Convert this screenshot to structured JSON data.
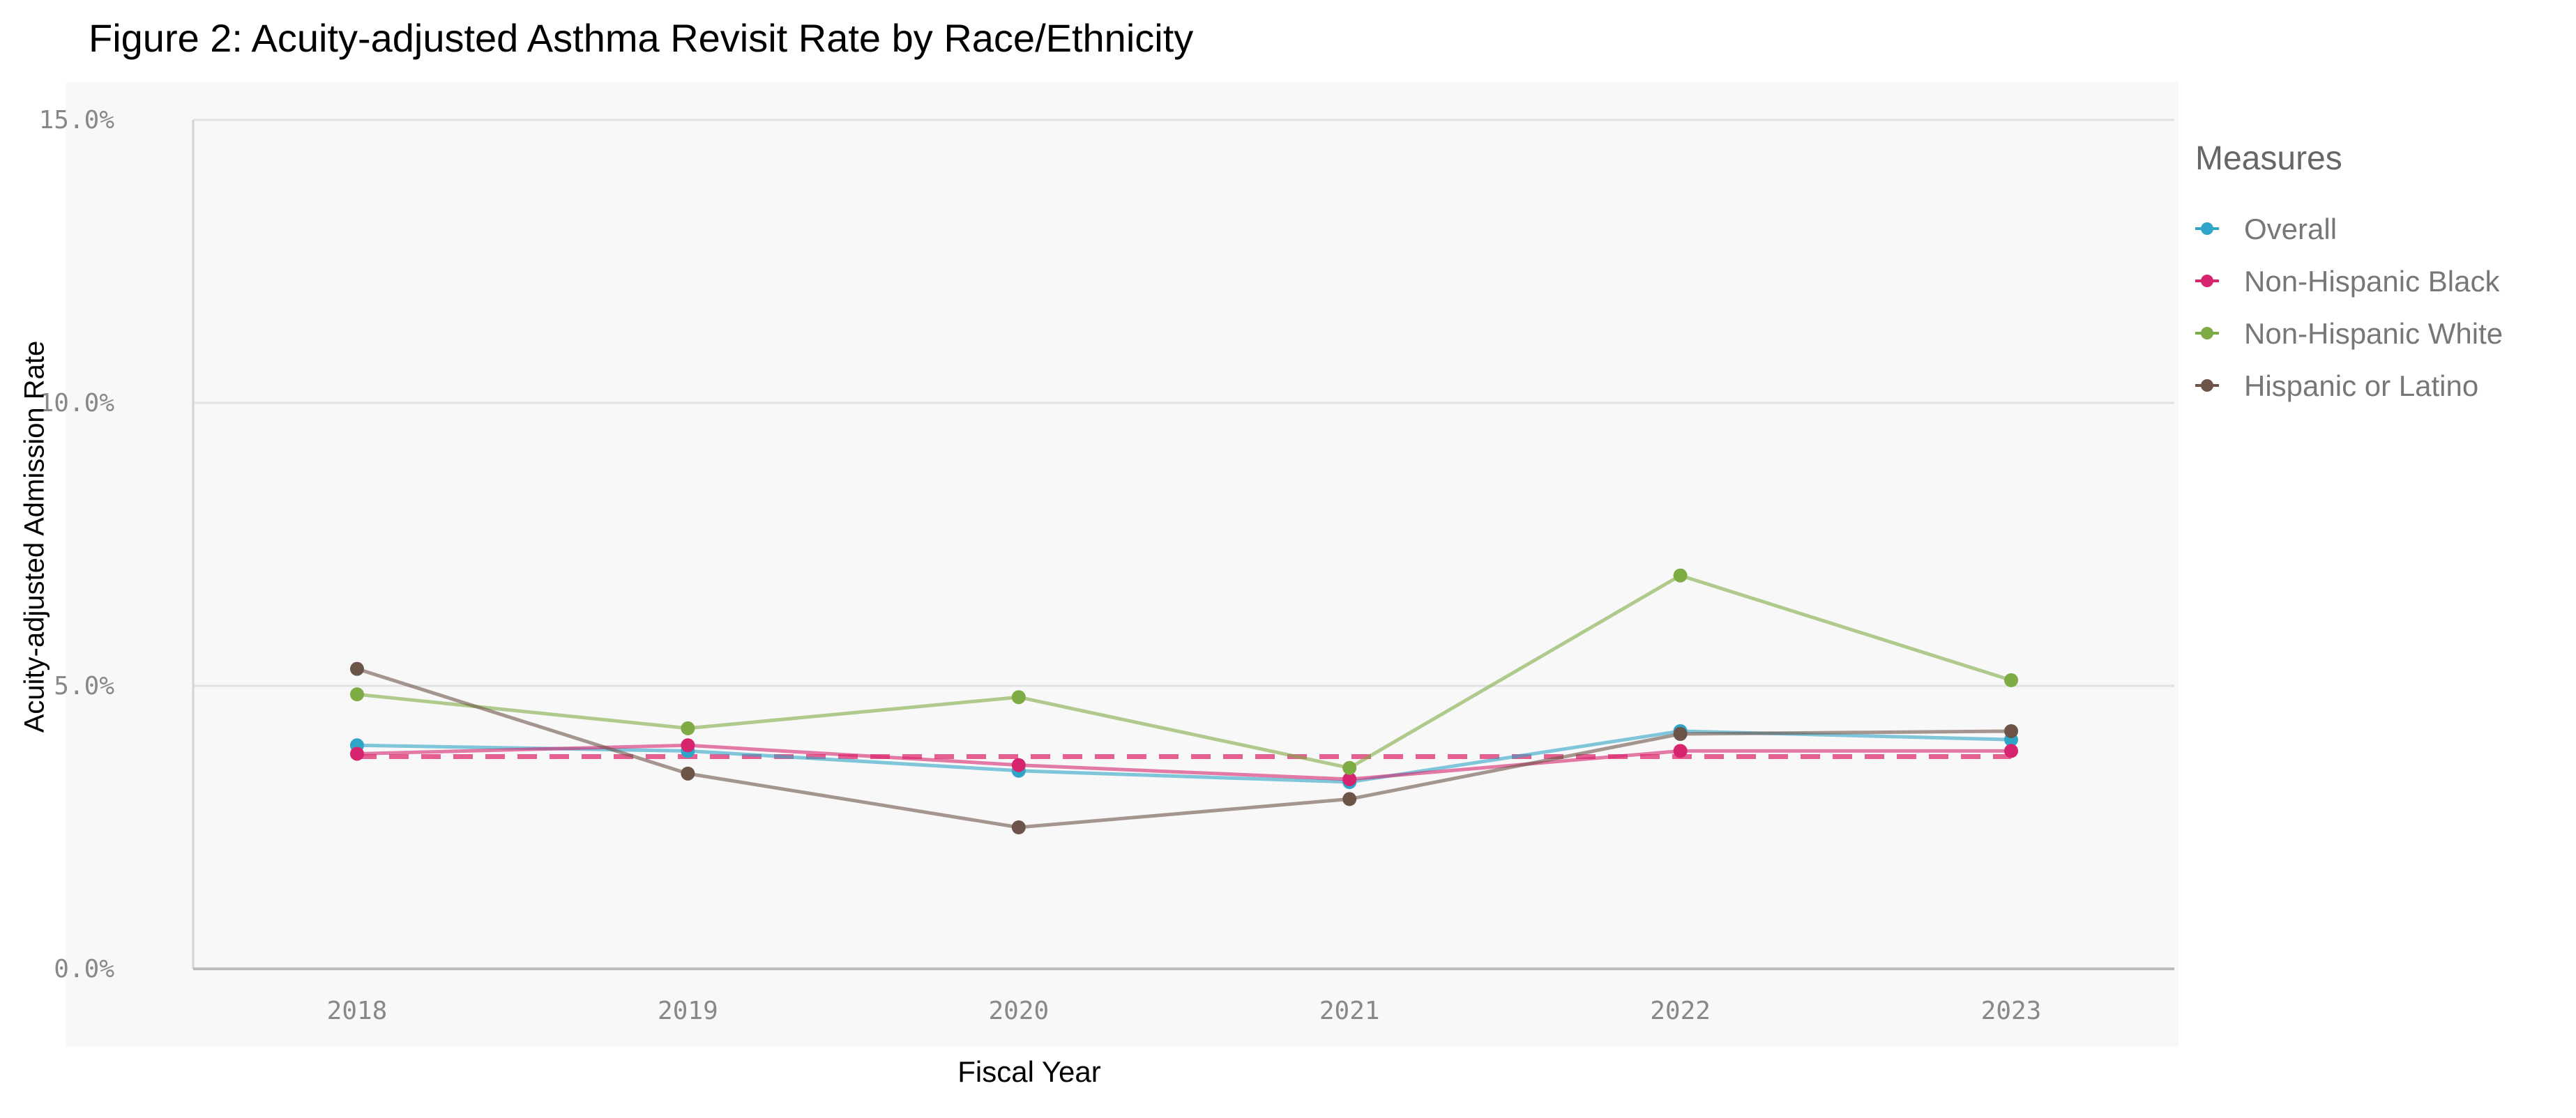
{
  "figure_title": "Figure 2: Acuity-adjusted Asthma Revisit Rate by Race/Ethnicity",
  "chart_data": {
    "type": "line",
    "title": "Figure 2: Acuity-adjusted Asthma Revisit Rate by Race/Ethnicity",
    "xlabel": "Fiscal Year",
    "ylabel": "Acuity-adjusted Admission Rate",
    "categories": [
      "2018",
      "2019",
      "2020",
      "2021",
      "2022",
      "2023"
    ],
    "ylim": [
      0,
      15
    ],
    "yticks": [
      0,
      5,
      10,
      15
    ],
    "ytick_labels": [
      "0.0%",
      "5.0%",
      "10.0%",
      "15.0%"
    ],
    "grid": true,
    "legend_title": "Measures",
    "legend_position": "right",
    "series": [
      {
        "name": "Overall",
        "color": "#2fa5c8",
        "values": [
          3.95,
          3.85,
          3.5,
          3.3,
          4.2,
          4.05
        ]
      },
      {
        "name": "Non-Hispanic Black",
        "color": "#d6246e",
        "values": [
          3.8,
          3.95,
          3.6,
          3.35,
          3.85,
          3.85
        ]
      },
      {
        "name": "Non-Hispanic White",
        "color": "#7fab45",
        "values": [
          4.85,
          4.25,
          4.8,
          3.55,
          6.95,
          5.1
        ]
      },
      {
        "name": "Hispanic or Latino",
        "color": "#6d5448",
        "values": [
          5.3,
          3.45,
          2.5,
          3.0,
          4.15,
          4.2
        ]
      }
    ],
    "reference_line": {
      "value": 3.75,
      "color": "#e2457f",
      "style": "dashed"
    }
  }
}
